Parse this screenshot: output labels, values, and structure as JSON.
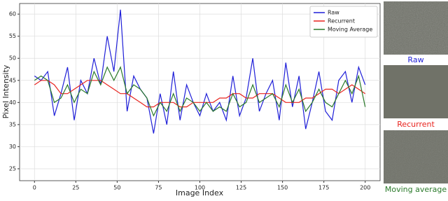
{
  "chart_data": {
    "type": "line",
    "xlabel": "Image Index",
    "ylabel": "Pixel Intensity",
    "x": [
      0,
      4,
      8,
      12,
      16,
      20,
      24,
      28,
      32,
      36,
      40,
      44,
      48,
      52,
      56,
      60,
      64,
      68,
      72,
      76,
      80,
      84,
      88,
      92,
      96,
      100,
      104,
      108,
      112,
      116,
      120,
      124,
      128,
      132,
      136,
      140,
      144,
      148,
      152,
      156,
      160,
      164,
      168,
      172,
      176,
      180,
      184,
      188,
      192,
      196,
      200
    ],
    "series": [
      {
        "name": "Raw",
        "color": "#1f1fd8",
        "values": [
          46,
          45,
          47,
          37,
          42,
          48,
          36,
          45,
          42,
          50,
          44,
          55,
          47,
          61,
          38,
          46,
          43,
          41,
          33,
          42,
          35,
          47,
          36,
          44,
          40,
          37,
          42,
          38,
          40,
          36,
          46,
          37,
          41,
          50,
          38,
          42,
          45,
          36,
          49,
          39,
          46,
          34,
          40,
          47,
          38,
          36,
          45,
          47,
          40,
          48,
          44
        ]
      },
      {
        "name": "Recurrent",
        "color": "#e8231e",
        "values": [
          44,
          45,
          45,
          44,
          42,
          42,
          43,
          44,
          45,
          45,
          45,
          44,
          43,
          42,
          42,
          41,
          40,
          39,
          39,
          40,
          40,
          40,
          39,
          39,
          40,
          40,
          40,
          40,
          41,
          41,
          42,
          42,
          41,
          41,
          42,
          42,
          42,
          41,
          40,
          40,
          40,
          41,
          41,
          42,
          43,
          43,
          42,
          43,
          44,
          43,
          42
        ]
      },
      {
        "name": "Moving Average",
        "color": "#2a7a2a",
        "values": [
          45,
          46,
          45,
          40,
          41,
          44,
          40,
          43,
          42,
          47,
          44,
          48,
          45,
          48,
          42,
          44,
          43,
          41,
          37,
          40,
          38,
          42,
          38,
          41,
          40,
          38,
          40,
          38,
          39,
          38,
          42,
          39,
          40,
          44,
          40,
          41,
          42,
          39,
          44,
          40,
          43,
          38,
          40,
          43,
          40,
          39,
          42,
          45,
          42,
          46,
          39
        ]
      }
    ],
    "xlim": [
      -9,
      209
    ],
    "ylim": [
      22.3,
      62.4
    ],
    "xticks": [
      0,
      25,
      50,
      75,
      100,
      125,
      150,
      175,
      200
    ],
    "yticks": [
      25,
      30,
      35,
      40,
      45,
      50,
      55,
      60
    ],
    "grid": true,
    "legend": "upper right"
  },
  "panels": [
    {
      "label": "Raw"
    },
    {
      "label": "Recurrent"
    },
    {
      "label": "Moving average"
    }
  ]
}
